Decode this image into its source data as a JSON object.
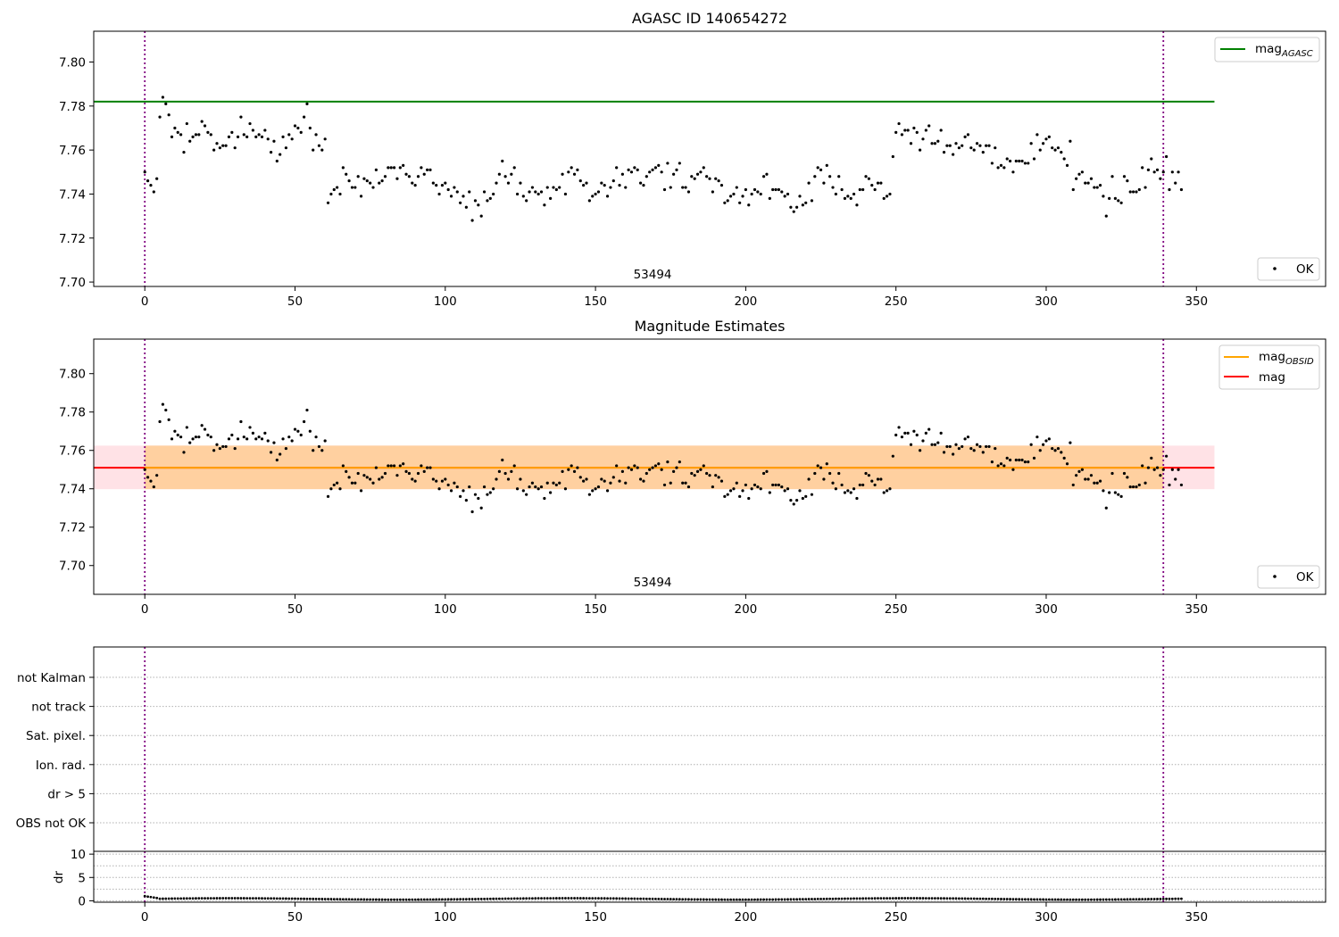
{
  "chart_data": [
    {
      "type": "scatter",
      "title": "AGASC ID 140654272",
      "xlim": [
        -17,
        393
      ],
      "ylim": [
        7.698,
        7.814
      ],
      "xticks": [
        0,
        50,
        100,
        150,
        200,
        250,
        300,
        350
      ],
      "yticks": [
        7.7,
        7.72,
        7.74,
        7.76,
        7.78,
        7.8
      ],
      "ytick_labels": [
        "7.70",
        "7.72",
        "7.74",
        "7.76",
        "7.78",
        "7.80"
      ],
      "obsid_label": "53494",
      "obsid_label_x": 169,
      "vlines": [
        0,
        339
      ],
      "vline_color": "#800080",
      "lines": [
        {
          "name": "AGASC",
          "value": 7.782,
          "x_range": [
            -17,
            356
          ],
          "color": "#008000"
        }
      ],
      "legend_upper": {
        "placement": "top-right",
        "entries": [
          {
            "base": "mag",
            "sub": "AGASC",
            "color": "#008000"
          }
        ]
      },
      "legend_lower": {
        "placement": "bottom-right",
        "entries": [
          {
            "label": "OK",
            "marker": "dot",
            "color": "#000000"
          }
        ]
      }
    },
    {
      "type": "scatter",
      "title": "Magnitude Estimates",
      "xlim": [
        -17,
        393
      ],
      "ylim": [
        7.685,
        7.818
      ],
      "xticks": [
        0,
        50,
        100,
        150,
        200,
        250,
        300,
        350
      ],
      "yticks": [
        7.7,
        7.72,
        7.74,
        7.76,
        7.78,
        7.8
      ],
      "ytick_labels": [
        "7.70",
        "7.72",
        "7.74",
        "7.76",
        "7.78",
        "7.80"
      ],
      "obsid_label": "53494",
      "obsid_label_x": 169,
      "vlines": [
        0,
        339
      ],
      "vline_color": "#800080",
      "bands": [
        {
          "name": "mag band",
          "from": 7.7398,
          "to": 7.7625,
          "x_range": [
            -17,
            356
          ],
          "color": "#ffb6c1",
          "opacity": 0.4
        },
        {
          "name": "mag_OBSID band",
          "from": 7.7398,
          "to": 7.7625,
          "x_range": [
            0,
            339
          ],
          "color": "#ffa500",
          "opacity": 0.3
        }
      ],
      "lines": [
        {
          "name": "mag",
          "value": 7.751,
          "x_range": [
            -17,
            356
          ],
          "color": "#ff0000"
        },
        {
          "name": "OBSID",
          "value": 7.751,
          "x_range": [
            0,
            339
          ],
          "color": "#ffa500"
        }
      ],
      "legend_upper": {
        "placement": "top-right",
        "entries": [
          {
            "base": "mag",
            "sub": "OBSID",
            "color": "#ffa500"
          },
          {
            "base": "mag",
            "sub": "",
            "color": "#ff0000"
          }
        ]
      },
      "legend_lower": {
        "placement": "bottom-right",
        "entries": [
          {
            "label": "OK",
            "marker": "dot",
            "color": "#000000"
          }
        ]
      }
    },
    {
      "type": "flags",
      "xlim": [
        -17,
        393
      ],
      "vlines": [
        0,
        339
      ],
      "vline_color": "#800080",
      "categories": [
        "not Kalman",
        "not track",
        "Sat. pixel.",
        "Ion. rad.",
        "dr > 5",
        "OBS not OK"
      ],
      "flagged_points": []
    },
    {
      "type": "scatter",
      "ylabel": "dr",
      "xlim": [
        -17,
        393
      ],
      "ylim": [
        -0.3,
        10.6
      ],
      "xticks": [
        0,
        50,
        100,
        150,
        200,
        250,
        300,
        350
      ],
      "yticks": [
        0,
        5,
        10
      ],
      "ytick_labels": [
        "0",
        "5",
        "10"
      ],
      "vlines": [
        0,
        339
      ],
      "vline_color": "#800080",
      "dr_values": {
        "first": 1.0,
        "typical": 0.4
      }
    }
  ],
  "magnitudes": {
    "x_start": 0,
    "x_step": 1,
    "values": [
      7.75,
      7.746,
      7.744,
      7.741,
      7.747,
      7.775,
      7.784,
      7.781,
      7.776,
      7.766,
      7.77,
      7.768,
      7.767,
      7.759,
      7.772,
      7.764,
      7.766,
      7.767,
      7.767,
      7.773,
      7.771,
      7.768,
      7.767,
      7.76,
      7.763,
      7.761,
      7.762,
      7.762,
      7.766,
      7.768,
      7.761,
      7.766,
      7.775,
      7.767,
      7.766,
      7.772,
      7.769,
      7.766,
      7.767,
      7.766,
      7.769,
      7.765,
      7.759,
      7.764,
      7.755,
      7.758,
      7.766,
      7.761,
      7.767,
      7.765,
      7.771,
      7.77,
      7.768,
      7.775,
      7.781,
      7.77,
      7.76,
      7.767,
      7.762,
      7.76,
      7.765,
      7.736,
      7.74,
      7.742,
      7.743,
      7.74,
      7.752,
      7.749,
      7.746,
      7.743,
      7.743,
      7.748,
      7.739,
      7.747,
      7.746,
      7.745,
      7.743,
      7.751,
      7.745,
      7.746,
      7.748,
      7.752,
      7.752,
      7.752,
      7.747,
      7.752,
      7.753,
      7.749,
      7.748,
      7.745,
      7.744,
      7.748,
      7.752,
      7.749,
      7.751,
      7.751,
      7.745,
      7.744,
      7.74,
      7.744,
      7.745,
      7.742,
      7.739,
      7.743,
      7.741,
      7.736,
      7.739,
      7.734,
      7.741,
      7.728,
      7.737,
      7.735,
      7.73,
      7.741,
      7.737,
      7.738,
      7.74,
      7.745,
      7.749,
      7.755,
      7.748,
      7.745,
      7.749,
      7.752,
      7.74,
      7.745,
      7.739,
      7.737,
      7.741,
      7.743,
      7.741,
      7.74,
      7.741,
      7.735,
      7.743,
      7.738,
      7.743,
      7.742,
      7.743,
      7.749,
      7.74,
      7.75,
      7.752,
      7.749,
      7.751,
      7.746,
      7.744,
      7.745,
      7.737,
      7.739,
      7.74,
      7.741,
      7.745,
      7.744,
      7.739,
      7.743,
      7.746,
      7.752,
      7.744,
      7.749,
      7.743,
      7.751,
      7.75,
      7.752,
      7.751,
      7.745,
      7.744,
      7.748,
      7.75,
      7.751,
      7.752,
      7.753,
      7.75,
      7.742,
      7.754,
      7.743,
      7.749,
      7.751,
      7.754,
      7.743,
      7.743,
      7.741,
      7.748,
      7.747,
      7.749,
      7.75,
      7.752,
      7.748,
      7.747,
      7.741,
      7.747,
      7.746,
      7.744,
      7.736,
      7.737,
      7.739,
      7.74,
      7.743,
      7.736,
      7.739,
      7.742,
      7.735,
      7.74,
      7.742,
      7.741,
      7.74,
      7.748,
      7.749,
      7.738,
      7.742,
      7.742,
      7.742,
      7.741,
      7.739,
      7.74,
      7.734,
      7.732,
      7.734,
      7.739,
      7.735,
      7.736,
      7.745,
      7.737,
      7.748,
      7.752,
      7.751,
      7.745,
      7.753,
      7.748,
      7.743,
      7.74,
      7.748,
      7.742,
      7.738,
      7.739,
      7.738,
      7.74,
      7.735,
      7.742,
      7.742,
      7.748,
      7.747,
      7.744,
      7.742,
      7.745,
      7.745,
      7.738,
      7.739,
      7.74,
      7.757,
      7.768,
      7.772,
      7.767,
      7.769,
      7.769,
      7.763,
      7.77,
      7.768,
      7.76,
      7.765,
      7.769,
      7.771,
      7.763,
      7.763,
      7.764,
      7.769,
      7.759,
      7.762,
      7.762,
      7.758,
      7.763,
      7.761,
      7.762,
      7.766,
      7.767,
      7.761,
      7.76,
      7.763,
      7.762,
      7.759,
      7.762,
      7.762,
      7.754,
      7.761,
      7.752,
      7.753,
      7.752,
      7.756,
      7.755,
      7.75,
      7.755,
      7.755,
      7.755,
      7.754,
      7.754,
      7.763,
      7.756,
      7.767,
      7.76,
      7.763,
      7.765,
      7.766,
      7.761,
      7.76,
      7.761,
      7.759,
      7.756,
      7.753,
      7.764,
      7.742,
      7.747,
      7.749,
      7.75,
      7.745,
      7.745,
      7.747,
      7.743,
      7.743,
      7.744,
      7.739,
      7.73,
      7.738,
      7.748,
      7.738,
      7.737,
      7.736,
      7.748,
      7.746,
      7.741,
      7.741,
      7.741,
      7.742,
      7.752,
      7.743,
      7.751,
      7.756,
      7.75,
      7.751,
      7.747,
      7.75,
      7.757,
      7.742,
      7.75,
      7.745,
      7.75,
      7.742
    ]
  }
}
